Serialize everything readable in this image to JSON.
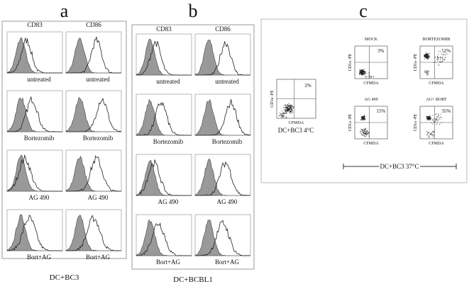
{
  "panels": [
    {
      "letter": "a",
      "columns": [
        "CD83",
        "CD86"
      ],
      "rows": [
        "untreated",
        "Bortezomib",
        "AG 490",
        "Bort+AG"
      ],
      "caption": "DC+BC3"
    },
    {
      "letter": "b",
      "columns": [
        "CD83",
        "CD86"
      ],
      "rows": [
        "untreated",
        "Bortezomib",
        "AG 490",
        "Bort+AG"
      ],
      "caption": "DC+BCBL1"
    }
  ],
  "panel_c": {
    "letter": "c",
    "control": {
      "y_label": "CD1a -PE",
      "x_label": "CFMDA",
      "percent": "2%",
      "caption": "DC+BC3 4°C"
    },
    "plots": [
      {
        "title": "MOCK",
        "y_label": "CD1a -PE",
        "x_label": "CFMDA",
        "percent": "3%"
      },
      {
        "title": "BORTEZOMIB",
        "y_label": "CD1a -PE",
        "x_label": "CFMDA",
        "percent": "52%"
      },
      {
        "title": "AG 490",
        "y_label": "CD1a -PE",
        "x_label": "CFMDA",
        "percent": "15%"
      },
      {
        "title": "AG+ BORT",
        "y_label": "CD1a -PE",
        "x_label": "CFMDA",
        "percent": "35%"
      }
    ],
    "caption": "DC+BC3  37°C"
  }
}
